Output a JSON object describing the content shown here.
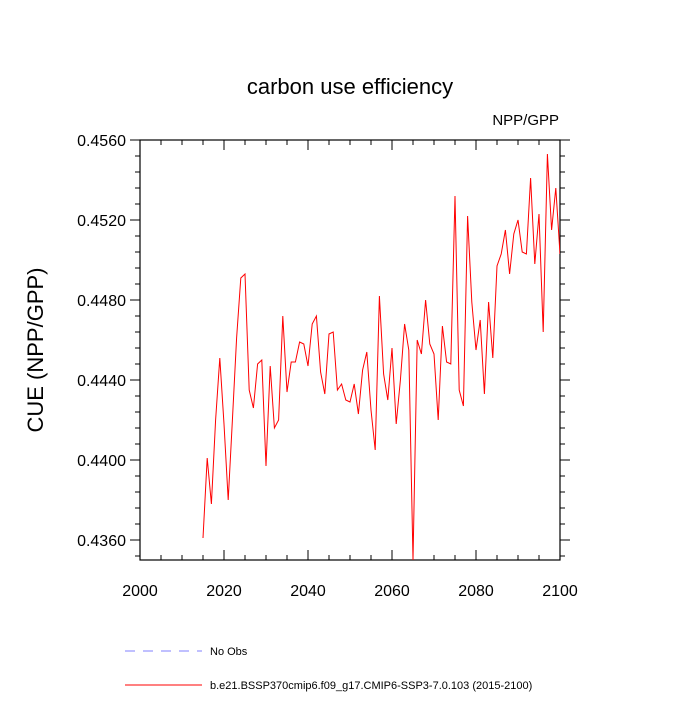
{
  "chart_data": {
    "type": "line",
    "title": "carbon use efficiency",
    "subtitle": "NPP/GPP",
    "xlabel": "",
    "ylabel": "CUE  (NPP/GPP)",
    "xlim": [
      2000,
      2100
    ],
    "ylim": [
      0.435,
      0.456
    ],
    "x_ticks": [
      2000,
      2020,
      2040,
      2060,
      2080,
      2100
    ],
    "x_tick_labels": [
      "2000",
      "2020",
      "2040",
      "2060",
      "2080",
      "2100"
    ],
    "y_ticks": [
      0.436,
      0.44,
      0.444,
      0.448,
      0.452,
      0.456
    ],
    "y_tick_labels": [
      "0.4360",
      "0.4400",
      "0.4440",
      "0.4480",
      "0.4520",
      "0.4560"
    ],
    "grid": false,
    "legend_position": "bottom",
    "series": [
      {
        "name": "No Obs",
        "color": "#8080ff",
        "dash": true,
        "x": [],
        "values": []
      },
      {
        "name": "b.e21.BSSP370cmip6.f09_g17.CMIP6-SSP3-7.0.103 (2015-2100)",
        "color": "#ff0000",
        "dash": false,
        "x": [
          2015,
          2016,
          2017,
          2018,
          2019,
          2020,
          2021,
          2022,
          2023,
          2024,
          2025,
          2026,
          2027,
          2028,
          2029,
          2030,
          2031,
          2032,
          2033,
          2034,
          2035,
          2036,
          2037,
          2038,
          2039,
          2040,
          2041,
          2042,
          2043,
          2044,
          2045,
          2046,
          2047,
          2048,
          2049,
          2050,
          2051,
          2052,
          2053,
          2054,
          2055,
          2056,
          2057,
          2058,
          2059,
          2060,
          2061,
          2062,
          2063,
          2064,
          2065,
          2066,
          2067,
          2068,
          2069,
          2070,
          2071,
          2072,
          2073,
          2074,
          2075,
          2076,
          2077,
          2078,
          2079,
          2080,
          2081,
          2082,
          2083,
          2084,
          2085,
          2086,
          2087,
          2088,
          2089,
          2090,
          2091,
          2092,
          2093,
          2094,
          2095,
          2096,
          2097,
          2098,
          2099,
          2100
        ],
        "values": [
          0.4361,
          0.4401,
          0.4378,
          0.442,
          0.4451,
          0.4418,
          0.438,
          0.442,
          0.4461,
          0.4491,
          0.4493,
          0.4435,
          0.4426,
          0.4448,
          0.445,
          0.4397,
          0.4447,
          0.4416,
          0.442,
          0.4472,
          0.4434,
          0.4449,
          0.4449,
          0.4459,
          0.4458,
          0.4447,
          0.4468,
          0.4472,
          0.4444,
          0.4433,
          0.4463,
          0.4464,
          0.4435,
          0.4438,
          0.443,
          0.4429,
          0.4438,
          0.4423,
          0.4445,
          0.4454,
          0.4425,
          0.4405,
          0.4482,
          0.4443,
          0.443,
          0.4456,
          0.4418,
          0.444,
          0.4468,
          0.4455,
          0.435,
          0.446,
          0.4453,
          0.448,
          0.4458,
          0.4453,
          0.442,
          0.4467,
          0.4449,
          0.4448,
          0.4532,
          0.4435,
          0.4427,
          0.4522,
          0.4479,
          0.4455,
          0.447,
          0.4433,
          0.4479,
          0.4451,
          0.4497,
          0.4503,
          0.4515,
          0.4493,
          0.4513,
          0.452,
          0.4504,
          0.4503,
          0.4541,
          0.4498,
          0.4523,
          0.4464,
          0.4553,
          0.4515,
          0.4536,
          0.4503
        ]
      }
    ]
  }
}
